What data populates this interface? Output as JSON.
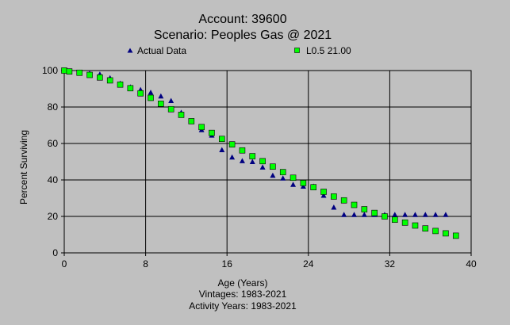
{
  "chart_data": {
    "type": "scatter",
    "title": "Account: 39600",
    "subtitle": "Scenario: Peoples Gas @ 2021",
    "xlabel": "Age (Years)",
    "ylabel": "Percent Surviving",
    "footer_lines": [
      "Vintages: 1983-2021",
      "Activity Years: 1983-2021"
    ],
    "xlim": [
      0,
      40
    ],
    "ylim": [
      0,
      100
    ],
    "x_ticks": [
      0,
      8,
      16,
      24,
      32,
      40
    ],
    "y_ticks": [
      0,
      20,
      40,
      60,
      80,
      100
    ],
    "grid": true,
    "legend_placement": "top",
    "series": [
      {
        "name": "Actual Data",
        "marker": "triangle",
        "color": "#000080",
        "x": [
          0,
          0.5,
          1.5,
          2.5,
          3.5,
          4.5,
          5.5,
          6.5,
          7.5,
          8.5,
          9.5,
          10.5,
          11.5,
          12.5,
          13.5,
          14.5,
          15.5,
          16.5,
          17.5,
          18.5,
          19.5,
          20.5,
          21.5,
          22.5,
          23.5,
          24.5,
          25.5,
          26.5,
          27.5,
          28.5,
          29.5,
          30.5,
          31.5,
          32.5,
          33.5,
          34.5,
          35.5,
          36.5,
          37.5
        ],
        "y": [
          100,
          99.6,
          99.0,
          98.5,
          98.0,
          96.0,
          93.0,
          91.0,
          89.5,
          88.0,
          86.0,
          83.5,
          77.0,
          72.0,
          67.5,
          64.5,
          56.5,
          52.5,
          50.5,
          50.0,
          47.0,
          42.5,
          41.0,
          37.5,
          36.5,
          36.5,
          31.5,
          25.0,
          21.0,
          21.0,
          21.0,
          21.0,
          21.0,
          21.0,
          21.0,
          21.0,
          21.0,
          21.0,
          21.0
        ]
      },
      {
        "name": "L0.5 21.00",
        "marker": "square",
        "color": "#00ff00",
        "x": [
          0,
          0.5,
          1.5,
          2.5,
          3.5,
          4.5,
          5.5,
          6.5,
          7.5,
          8.5,
          9.5,
          10.5,
          11.5,
          12.5,
          13.5,
          14.5,
          15.5,
          16.5,
          17.5,
          18.5,
          19.5,
          20.5,
          21.5,
          22.5,
          23.5,
          24.5,
          25.5,
          26.5,
          27.5,
          28.5,
          29.5,
          30.5,
          31.5,
          32.5,
          33.5,
          34.5,
          35.5,
          36.5,
          37.5,
          38.5
        ],
        "y": [
          100,
          99.5,
          98.8,
          97.6,
          96.2,
          94.6,
          92.3,
          90.3,
          87.5,
          85.0,
          81.8,
          78.8,
          75.7,
          72.2,
          69.0,
          65.8,
          62.5,
          59.5,
          56.2,
          53.0,
          50.3,
          47.3,
          44.3,
          41.2,
          38.3,
          36.0,
          33.5,
          30.9,
          28.8,
          26.3,
          23.9,
          21.9,
          20.0,
          18.2,
          16.6,
          15.0,
          13.4,
          12.0,
          10.7,
          9.4
        ]
      }
    ]
  }
}
